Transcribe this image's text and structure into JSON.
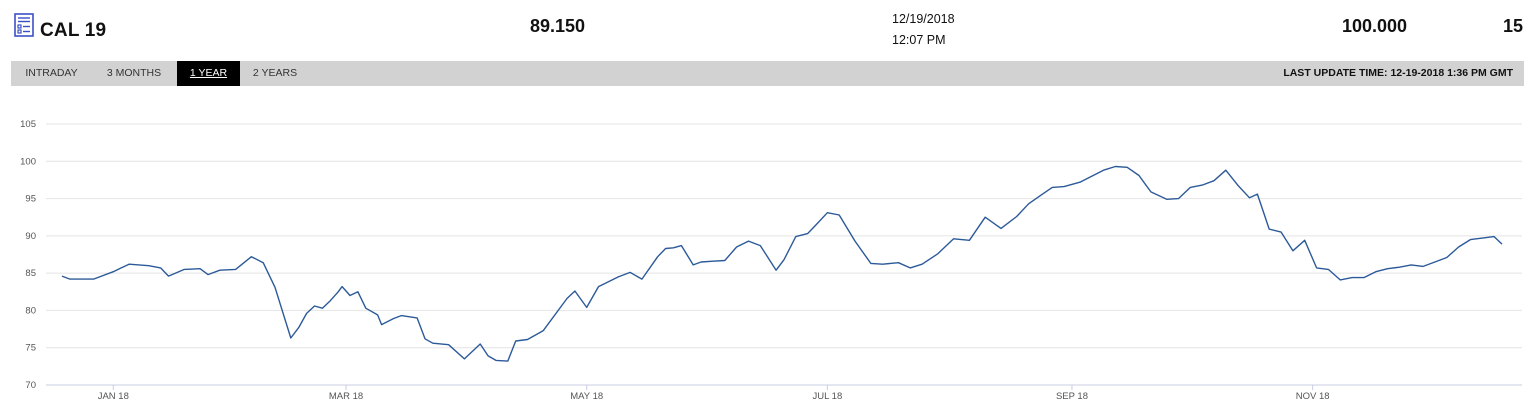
{
  "header": {
    "symbol": "CAL 19",
    "price": "89.150",
    "date": "12/19/2018",
    "time": "12:07 PM",
    "maturity_price": "100.000",
    "quantity": "15"
  },
  "tabs": [
    {
      "label": "INTRADAY",
      "active": false
    },
    {
      "label": "3 MONTHS",
      "active": false
    },
    {
      "label": "1 YEAR",
      "active": true
    },
    {
      "label": "2 YEARS",
      "active": false
    }
  ],
  "last_update": "LAST UPDATE TIME: 12-19-2018 1:36 PM GMT",
  "colors": {
    "line": "#2c5a99",
    "grid": "#e4e4e4",
    "axis": "#c8cde6",
    "tabbar": "#d2d2d2",
    "active_tab": "#000000",
    "icon": "#3a4fc4"
  },
  "icons": {
    "header": "document-list-icon"
  },
  "chart_data": {
    "type": "line",
    "title": "",
    "xlabel": "",
    "ylabel": "",
    "ylim": [
      70,
      105
    ],
    "yticks": [
      70,
      75,
      80,
      85,
      90,
      95,
      100,
      105
    ],
    "grid": true,
    "legend": "none",
    "x_start": "2017-12-19",
    "x_end": "2018-12-19",
    "xticks": [
      {
        "label": "JAN 18",
        "date": "2018-01-01"
      },
      {
        "label": "MAR 18",
        "date": "2018-03-01"
      },
      {
        "label": "MAY 18",
        "date": "2018-05-01"
      },
      {
        "label": "JUL 18",
        "date": "2018-07-01"
      },
      {
        "label": "SEP 18",
        "date": "2018-09-01"
      },
      {
        "label": "NOV 18",
        "date": "2018-11-01"
      }
    ],
    "x": [
      "2017-12-19",
      "2017-12-21",
      "2017-12-27",
      "2018-01-01",
      "2018-01-03",
      "2018-01-05",
      "2018-01-10",
      "2018-01-13",
      "2018-01-15",
      "2018-01-19",
      "2018-01-23",
      "2018-01-25",
      "2018-01-28",
      "2018-02-01",
      "2018-02-05",
      "2018-02-08",
      "2018-02-11",
      "2018-02-15",
      "2018-02-17",
      "2018-02-19",
      "2018-02-21",
      "2018-02-23",
      "2018-02-25",
      "2018-02-27",
      "2018-02-28",
      "2018-03-02",
      "2018-03-04",
      "2018-03-06",
      "2018-03-09",
      "2018-03-10",
      "2018-03-13",
      "2018-03-15",
      "2018-03-19",
      "2018-03-21",
      "2018-03-23",
      "2018-03-27",
      "2018-03-31",
      "2018-04-04",
      "2018-04-06",
      "2018-04-08",
      "2018-04-11",
      "2018-04-13",
      "2018-04-16",
      "2018-04-20",
      "2018-04-26",
      "2018-04-28",
      "2018-05-01",
      "2018-05-04",
      "2018-05-06",
      "2018-05-09",
      "2018-05-12",
      "2018-05-15",
      "2018-05-19",
      "2018-05-21",
      "2018-05-23",
      "2018-05-25",
      "2018-05-28",
      "2018-05-30",
      "2018-06-02",
      "2018-06-05",
      "2018-06-08",
      "2018-06-11",
      "2018-06-14",
      "2018-06-18",
      "2018-06-20",
      "2018-06-23",
      "2018-06-26",
      "2018-06-28",
      "2018-07-01",
      "2018-07-04",
      "2018-07-08",
      "2018-07-12",
      "2018-07-15",
      "2018-07-19",
      "2018-07-22",
      "2018-07-25",
      "2018-07-29",
      "2018-08-02",
      "2018-08-06",
      "2018-08-10",
      "2018-08-14",
      "2018-08-18",
      "2018-08-21",
      "2018-08-24",
      "2018-08-27",
      "2018-08-30",
      "2018-09-03",
      "2018-09-06",
      "2018-09-09",
      "2018-09-12",
      "2018-09-15",
      "2018-09-18",
      "2018-09-21",
      "2018-09-25",
      "2018-09-28",
      "2018-10-01",
      "2018-10-04",
      "2018-10-07",
      "2018-10-10",
      "2018-10-13",
      "2018-10-16",
      "2018-10-18",
      "2018-10-21",
      "2018-10-24",
      "2018-10-27",
      "2018-10-30",
      "2018-11-02",
      "2018-11-05",
      "2018-11-08",
      "2018-11-11",
      "2018-11-14",
      "2018-11-17",
      "2018-11-20",
      "2018-11-23",
      "2018-11-26",
      "2018-11-29",
      "2018-12-02",
      "2018-12-05",
      "2018-12-08",
      "2018-12-11",
      "2018-12-14",
      "2018-12-17",
      "2018-12-19"
    ],
    "values": [
      84.6,
      84.2,
      84.2,
      85.2,
      85.7,
      86.2,
      86.0,
      85.7,
      84.6,
      85.5,
      85.6,
      84.8,
      85.4,
      85.5,
      87.2,
      86.4,
      83.1,
      76.3,
      77.7,
      79.6,
      80.6,
      80.3,
      81.3,
      82.5,
      83.2,
      82.0,
      82.5,
      80.3,
      79.4,
      78.1,
      78.9,
      79.3,
      79.0,
      76.2,
      75.6,
      75.4,
      73.5,
      75.5,
      73.9,
      73.3,
      73.2,
      75.9,
      76.1,
      77.3,
      81.6,
      82.6,
      80.4,
      83.2,
      83.7,
      84.5,
      85.1,
      84.2,
      87.2,
      88.3,
      88.4,
      88.7,
      86.1,
      86.5,
      86.6,
      86.7,
      88.5,
      89.3,
      88.7,
      85.4,
      86.8,
      89.9,
      90.3,
      91.4,
      93.1,
      92.8,
      89.3,
      86.3,
      86.2,
      86.4,
      85.7,
      86.2,
      87.6,
      89.6,
      89.4,
      92.5,
      91.0,
      92.6,
      94.3,
      95.4,
      96.5,
      96.6,
      97.2,
      98.0,
      98.8,
      99.3,
      99.2,
      98.1,
      95.9,
      94.9,
      95.0,
      96.5,
      96.8,
      97.4,
      98.8,
      96.8,
      95.1,
      95.6,
      90.9,
      90.5,
      88.0,
      89.4,
      85.7,
      85.5,
      84.1,
      84.4,
      84.4,
      85.2,
      85.6,
      85.8,
      86.1,
      85.9,
      86.5,
      87.1,
      88.5,
      89.5,
      89.7,
      89.9,
      88.9
    ]
  }
}
